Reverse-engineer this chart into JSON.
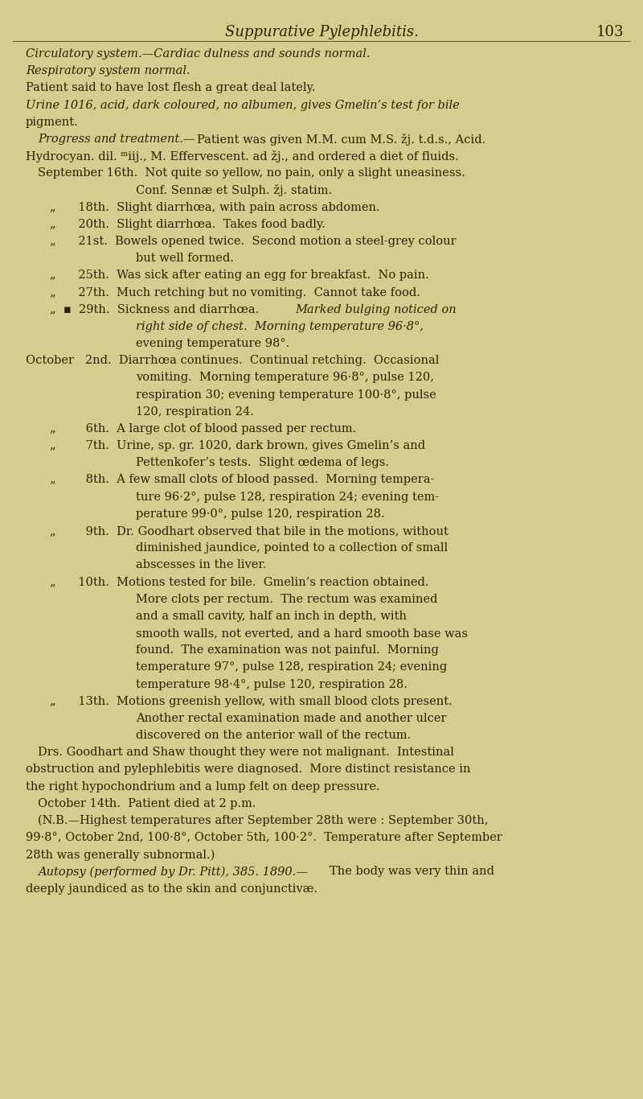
{
  "background_color": "#c8c48a",
  "page_color": "#d4cd8f",
  "title": "Suppurative Pylephlebitis.",
  "page_number": "103",
  "title_fontsize": 13,
  "body_fontsize": 10.5,
  "text_color": "#2a2200",
  "font_family": "serif",
  "lines": [
    {
      "indent": 0,
      "style": "italic",
      "text": "Circulatory system.—Cardiac dulness and sounds normal."
    },
    {
      "indent": 0,
      "style": "italic_start",
      "text": "Respiratory system normal.",
      "split": "normal",
      "split_after": ""
    },
    {
      "indent": 0,
      "style": "normal",
      "text": "Patient said to have lost flesh a great deal lately."
    },
    {
      "indent": 0,
      "style": "italic_start",
      "text": "Urine 1016, acid, dark coloured, no albumen, gives Gmelin’s test for bile",
      "split": "Urine",
      "split_after": " "
    },
    {
      "indent": 0,
      "style": "normal",
      "text": "pigment."
    },
    {
      "indent": 2,
      "style": "italic_start",
      "text": "Progress and treatment.—Patient was given M.M. cum M.S. žj. t.d.s., Acid.",
      "split": "Progress and treatment.—",
      "split_after": ""
    },
    {
      "indent": 0,
      "style": "normal",
      "text": "Hydrocyan. dil. ᵐiij., M. Effervescent. ad žj., and ordered a diet of fluids."
    },
    {
      "indent": 2,
      "style": "normal",
      "text": "September 16th.  Not quite so yellow, no pain, only a slight uneasiness."
    },
    {
      "indent": 18,
      "style": "normal",
      "text": "Conf. Sennæ et Sulph. žj. statim."
    },
    {
      "indent": 4,
      "style": "normal",
      "text": "„      18th.  Slight diarrhœa, with pain across abdomen."
    },
    {
      "indent": 4,
      "style": "normal",
      "text": "„      20th.  Slight diarrhœa.  Takes food badly."
    },
    {
      "indent": 4,
      "style": "normal",
      "text": "„      21st.  Bowels opened twice.  Second motion a steel-grey colour"
    },
    {
      "indent": 18,
      "style": "normal",
      "text": "but well formed."
    },
    {
      "indent": 4,
      "style": "normal",
      "text": "„      25th.  Was sick after eating an egg for breakfast.  No pain."
    },
    {
      "indent": 4,
      "style": "normal",
      "text": "„      27th.  Much retching but no vomiting.  Cannot take food."
    },
    {
      "indent": 4,
      "style": "italic_mid",
      "text": "„  ▪  29th.  Sickness and diarrhœa.  Marked bulging noticed on"
    },
    {
      "indent": 18,
      "style": "italic",
      "text": "right side of chest.  Morning temperature 96·8°,"
    },
    {
      "indent": 18,
      "style": "normal",
      "text": "evening temperature 98°."
    },
    {
      "indent": 0,
      "style": "normal",
      "text": "October   2nd.  Diarrhœa continues.  Continual retching.  Occasional"
    },
    {
      "indent": 18,
      "style": "normal",
      "text": "vomiting.  Morning temperature 96·8°, pulse 120,"
    },
    {
      "indent": 18,
      "style": "normal",
      "text": "respiration 30; evening temperature 100·8°, pulse"
    },
    {
      "indent": 18,
      "style": "normal",
      "text": "120, respiration 24."
    },
    {
      "indent": 4,
      "style": "normal",
      "text": "„        6th.  A large clot of blood passed per rectum."
    },
    {
      "indent": 4,
      "style": "normal",
      "text": "„        7th.  Urine, sp. gr. 1020, dark brown, gives Gmelin’s and"
    },
    {
      "indent": 18,
      "style": "normal",
      "text": "Pettenkofer’s tests.  Slight œdema of legs."
    },
    {
      "indent": 4,
      "style": "normal",
      "text": "„        8th.  A few small clots of blood passed.  Morning tempera-"
    },
    {
      "indent": 18,
      "style": "normal",
      "text": "ture 96·2°, pulse 128, respiration 24; evening tem-"
    },
    {
      "indent": 18,
      "style": "normal",
      "text": "perature 99·0°, pulse 120, respiration 28."
    },
    {
      "indent": 4,
      "style": "normal",
      "text": "„        9th.  Dr. Goodhart observed that bile in the motions, without"
    },
    {
      "indent": 18,
      "style": "normal",
      "text": "diminished jaundice, pointed to a collection of small"
    },
    {
      "indent": 18,
      "style": "normal",
      "text": "abscesses in the liver."
    },
    {
      "indent": 4,
      "style": "normal",
      "text": "„      10th.  Motions tested for bile.  Gmelin’s reaction obtained."
    },
    {
      "indent": 18,
      "style": "normal",
      "text": "More clots per rectum.  The rectum was examined"
    },
    {
      "indent": 18,
      "style": "normal",
      "text": "and a small cavity, half an inch in depth, with"
    },
    {
      "indent": 18,
      "style": "normal",
      "text": "smooth walls, not everted, and a hard smooth base was"
    },
    {
      "indent": 18,
      "style": "normal",
      "text": "found.  The examination was not painful.  Morning"
    },
    {
      "indent": 18,
      "style": "normal",
      "text": "temperature 97°, pulse 128, respiration 24; evening"
    },
    {
      "indent": 18,
      "style": "normal",
      "text": "temperature 98·4°, pulse 120, respiration 28."
    },
    {
      "indent": 4,
      "style": "normal",
      "text": "„      13th.  Motions greenish yellow, with small blood clots present."
    },
    {
      "indent": 18,
      "style": "normal",
      "text": "Another rectal examination made and another ulcer"
    },
    {
      "indent": 18,
      "style": "normal",
      "text": "discovered on the anterior wall of the rectum."
    },
    {
      "indent": 2,
      "style": "normal",
      "text": "Drs. Goodhart and Shaw thought they were not malignant.  Intestinal"
    },
    {
      "indent": 0,
      "style": "normal",
      "text": "obstruction and pylephlebitis were diagnosed.  More distinct resistance in"
    },
    {
      "indent": 0,
      "style": "normal",
      "text": "the right hypochondrium and a lump felt on deep pressure."
    },
    {
      "indent": 2,
      "style": "normal",
      "text": "October 14th.  Patient died at 2 p.m."
    },
    {
      "indent": 2,
      "style": "normal",
      "text": "(N.B.—Highest temperatures after September 28th were : September 30th,"
    },
    {
      "indent": 0,
      "style": "normal",
      "text": "99·8°, October 2nd, 100·8°, October 5th, 100·2°.  Temperature after September"
    },
    {
      "indent": 0,
      "style": "normal",
      "text": "28th was generally subnormal.)"
    },
    {
      "indent": 2,
      "style": "italic_start",
      "text": "Autopsy (performed by Dr. Pitt), 385. 1890.—The body was very thin and",
      "split": "Autopsy",
      "split_after": " "
    },
    {
      "indent": 0,
      "style": "normal",
      "text": "deeply jaundiced as to the skin and conjunctivæ."
    }
  ]
}
